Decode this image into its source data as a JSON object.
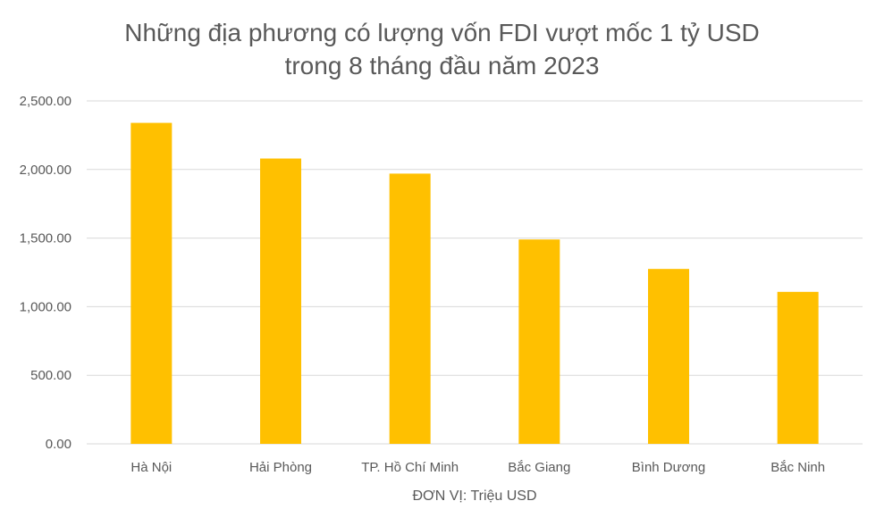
{
  "chart_data": {
    "type": "bar",
    "title": "Những địa phương có lượng vốn FDI vượt mốc 1 tỷ USD",
    "subtitle": "trong 8 tháng đầu năm 2023",
    "categories": [
      "Hà Nội",
      "Hải Phòng",
      "TP. Hồ Chí Minh",
      "Bắc Giang",
      "Bình Dương",
      "Bắc Ninh"
    ],
    "values": [
      2340,
      2080,
      1970,
      1490,
      1275,
      1108
    ],
    "xlabel": "ĐƠN VỊ: Triệu USD",
    "ylabel": "",
    "ylim": [
      0,
      2500
    ],
    "yticks": [
      "0.00",
      "500.00",
      "1,000.00",
      "1,500.00",
      "2,000.00",
      "2,500.00"
    ],
    "ytick_values": [
      0,
      500,
      1000,
      1500,
      2000,
      2500
    ],
    "grid": true,
    "bar_color": "#FFC000",
    "grid_color": "#D9D9D9"
  }
}
